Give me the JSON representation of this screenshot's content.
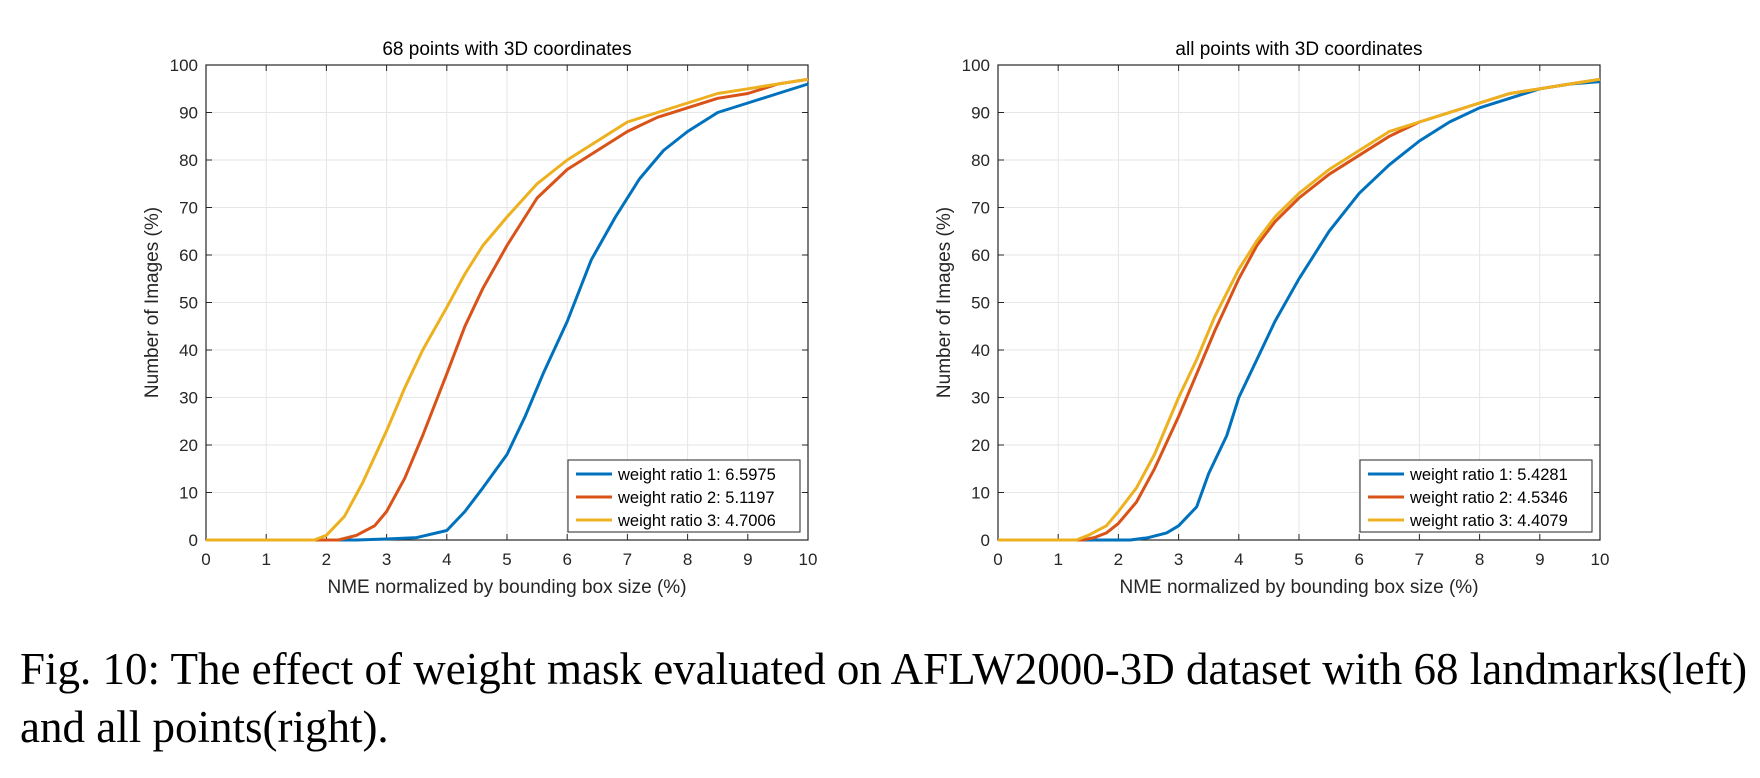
{
  "caption": "Fig. 10: The effect of weight mask evaluated on AFLW2000-3D dataset with 68 landmarks(left) and all points(right).",
  "colors": {
    "series1": "#0072BD",
    "series2": "#D95319",
    "series3": "#EDB120"
  },
  "chart_data": [
    {
      "type": "line",
      "title": "68 points with 3D coordinates",
      "xlabel": "NME normalized by bounding box size (%)",
      "ylabel": "Number of Images (%)",
      "xlim": [
        0,
        10
      ],
      "ylim": [
        0,
        100
      ],
      "xticks": [
        0,
        1,
        2,
        3,
        4,
        5,
        6,
        7,
        8,
        9,
        10
      ],
      "yticks": [
        0,
        10,
        20,
        30,
        40,
        50,
        60,
        70,
        80,
        90,
        100
      ],
      "grid": true,
      "legend_position": "bottom-right",
      "series": [
        {
          "name": "weight ratio 1: 6.5975",
          "x": [
            0,
            2.5,
            3.0,
            3.5,
            4.0,
            4.3,
            4.6,
            5.0,
            5.3,
            5.6,
            6.0,
            6.4,
            6.8,
            7.2,
            7.6,
            8.0,
            8.5,
            9.0,
            9.5,
            10
          ],
          "y": [
            0,
            0,
            0.2,
            0.5,
            2,
            6,
            11,
            18,
            26,
            35,
            46,
            59,
            68,
            76,
            82,
            86,
            90,
            92,
            94,
            96
          ]
        },
        {
          "name": "weight ratio 2: 5.1197",
          "x": [
            0,
            2.2,
            2.5,
            2.8,
            3.0,
            3.3,
            3.6,
            4.0,
            4.3,
            4.6,
            5.0,
            5.5,
            6.0,
            6.5,
            7.0,
            7.5,
            8.0,
            8.5,
            9.0,
            9.5,
            10
          ],
          "y": [
            0,
            0,
            1,
            3,
            6,
            13,
            22,
            35,
            45,
            53,
            62,
            72,
            78,
            82,
            86,
            89,
            91,
            93,
            94,
            96,
            97
          ]
        },
        {
          "name": "weight ratio 3: 4.7006",
          "x": [
            0,
            1.8,
            2.0,
            2.3,
            2.6,
            3.0,
            3.3,
            3.6,
            4.0,
            4.3,
            4.6,
            5.0,
            5.5,
            6.0,
            6.5,
            7.0,
            7.5,
            8.0,
            8.5,
            9.0,
            9.5,
            10
          ],
          "y": [
            0,
            0,
            1,
            5,
            12,
            23,
            32,
            40,
            49,
            56,
            62,
            68,
            75,
            80,
            84,
            88,
            90,
            92,
            94,
            95,
            96,
            97
          ]
        }
      ]
    },
    {
      "type": "line",
      "title": "all points with 3D coordinates",
      "xlabel": "NME normalized by bounding box size (%)",
      "ylabel": "Number of Images (%)",
      "xlim": [
        0,
        10
      ],
      "ylim": [
        0,
        100
      ],
      "xticks": [
        0,
        1,
        2,
        3,
        4,
        5,
        6,
        7,
        8,
        9,
        10
      ],
      "yticks": [
        0,
        10,
        20,
        30,
        40,
        50,
        60,
        70,
        80,
        90,
        100
      ],
      "grid": true,
      "legend_position": "bottom-right",
      "series": [
        {
          "name": "weight ratio 1: 5.4281",
          "x": [
            0,
            2.2,
            2.5,
            2.8,
            3.0,
            3.3,
            3.5,
            3.8,
            4.0,
            4.3,
            4.6,
            5.0,
            5.5,
            6.0,
            6.5,
            7.0,
            7.5,
            8.0,
            8.5,
            9.0,
            9.5,
            10
          ],
          "y": [
            0,
            0,
            0.5,
            1.5,
            3,
            7,
            14,
            22,
            30,
            38,
            46,
            55,
            65,
            73,
            79,
            84,
            88,
            91,
            93,
            95,
            96,
            96.5
          ]
        },
        {
          "name": "weight ratio 2: 4.5346",
          "x": [
            0,
            1.4,
            1.6,
            1.8,
            2.0,
            2.3,
            2.6,
            3.0,
            3.3,
            3.6,
            4.0,
            4.3,
            4.6,
            5.0,
            5.5,
            6.0,
            6.5,
            7.0,
            7.5,
            8.0,
            8.5,
            9.0,
            9.5,
            10
          ],
          "y": [
            0,
            0,
            0.5,
            1.5,
            3.5,
            8,
            15,
            26,
            35,
            44,
            55,
            62,
            67,
            72,
            77,
            81,
            85,
            88,
            90,
            92,
            94,
            95,
            96,
            97
          ]
        },
        {
          "name": "weight ratio 3: 4.4079",
          "x": [
            0,
            1.3,
            1.5,
            1.8,
            2.0,
            2.3,
            2.6,
            3.0,
            3.3,
            3.6,
            4.0,
            4.3,
            4.6,
            5.0,
            5.5,
            6.0,
            6.5,
            7.0,
            7.5,
            8.0,
            8.5,
            9.0,
            9.5,
            10
          ],
          "y": [
            0,
            0,
            1,
            3,
            6,
            11,
            18,
            30,
            38,
            47,
            57,
            63,
            68,
            73,
            78,
            82,
            86,
            88,
            90,
            92,
            94,
            95,
            96,
            97
          ]
        }
      ]
    }
  ]
}
